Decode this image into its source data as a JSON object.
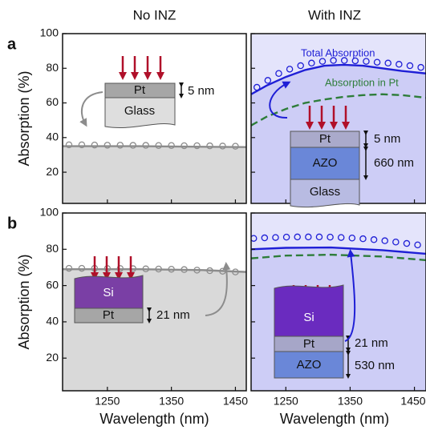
{
  "chart_data": [
    {
      "type": "line",
      "title": "No INZ",
      "panel_label": "a",
      "ylabel": "Absorption (%)",
      "xlim": [
        1180,
        1467
      ],
      "ylim": [
        2,
        100
      ],
      "xticks": [
        1250,
        1350,
        1450
      ],
      "yticks": [
        20,
        40,
        60,
        80,
        100
      ],
      "background": "#ffffff",
      "area_color": "#d9d9d9",
      "series": [
        {
          "style": "solid",
          "color": "#8c8c8c",
          "x": [
            1180,
            1300,
            1467
          ],
          "values": [
            35,
            35,
            34.5
          ]
        },
        {
          "style": "markers",
          "color": "#8c8c8c",
          "x": [
            1190,
            1210,
            1230,
            1250,
            1270,
            1290,
            1310,
            1330,
            1350,
            1370,
            1390,
            1410,
            1430,
            1450
          ],
          "values": [
            35.8,
            35.8,
            35.7,
            35.6,
            35.6,
            35.5,
            35.5,
            35.4,
            35.4,
            35.3,
            35.3,
            35.2,
            35.1,
            35
          ]
        }
      ],
      "annotations": [
        "Pt",
        "Glass",
        "5 nm"
      ]
    },
    {
      "type": "line",
      "title": "With INZ",
      "xlim": [
        1196,
        1468
      ],
      "ylim": [
        2,
        100
      ],
      "xticks": [
        1250,
        1350,
        1450
      ],
      "yticks": [
        20,
        40,
        60,
        80,
        100
      ],
      "background": "#e4e4fb",
      "area_color": "#cdcdf6",
      "series": [
        {
          "style": "solid",
          "color": "#1f1fd6",
          "x": [
            1196,
            1220,
            1250,
            1280,
            1310,
            1340,
            1370,
            1400,
            1430,
            1468
          ],
          "values": [
            65,
            70,
            75,
            79,
            81.5,
            82,
            81.5,
            80,
            78.5,
            77
          ]
        },
        {
          "style": "markers",
          "color": "#1f1fd6",
          "x": [
            1205,
            1222,
            1239,
            1256,
            1273,
            1290,
            1307,
            1324,
            1341,
            1358,
            1375,
            1392,
            1409,
            1426,
            1443,
            1460
          ],
          "values": [
            69,
            73,
            77,
            79.5,
            81.5,
            83,
            84,
            84.5,
            84.5,
            84.3,
            84,
            83.5,
            83,
            82.3,
            81.5,
            80.5
          ]
        },
        {
          "style": "dashed",
          "color": "#2e7d3a",
          "x": [
            1196,
            1220,
            1250,
            1280,
            1310,
            1340,
            1370,
            1400,
            1430,
            1468
          ],
          "values": [
            47,
            52,
            56.5,
            60,
            62,
            63.5,
            64.5,
            65,
            64.5,
            63
          ]
        }
      ],
      "annotations": [
        "Total Absorption",
        "Absorption in Pt",
        "Pt",
        "AZO",
        "Glass",
        "5 nm",
        "660 nm"
      ]
    },
    {
      "type": "line",
      "panel_label": "b",
      "ylabel": "Absorption (%)",
      "xlabel": "Wavelength (nm)",
      "xlim": [
        1180,
        1467
      ],
      "ylim": [
        2,
        100
      ],
      "xticks": [
        1250,
        1350,
        1450
      ],
      "yticks": [
        20,
        40,
        60,
        80,
        100
      ],
      "background": "#ffffff",
      "area_color": "#d9d9d9",
      "series": [
        {
          "style": "solid",
          "color": "#8c8c8c",
          "x": [
            1180,
            1300,
            1400,
            1467
          ],
          "values": [
            69,
            69,
            68.5,
            67.5
          ]
        },
        {
          "style": "markers",
          "color": "#8c8c8c",
          "x": [
            1190,
            1210,
            1230,
            1250,
            1270,
            1290,
            1310,
            1330,
            1350,
            1370,
            1390,
            1410,
            1430,
            1450
          ],
          "values": [
            69.5,
            69.5,
            69.5,
            69.4,
            69.4,
            69.3,
            69.2,
            69.1,
            69,
            68.8,
            68.5,
            68.2,
            67.9,
            67.5
          ]
        }
      ],
      "annotations": [
        "Si",
        "Pt",
        "21 nm"
      ]
    },
    {
      "type": "line",
      "xlabel": "Wavelength (nm)",
      "xlim": [
        1196,
        1468
      ],
      "ylim": [
        2,
        100
      ],
      "xticks": [
        1250,
        1350,
        1450
      ],
      "yticks": [
        20,
        40,
        60,
        80,
        100
      ],
      "background": "#e4e4fb",
      "area_color": "#cdcdf6",
      "series": [
        {
          "style": "solid",
          "color": "#1f1fd6",
          "x": [
            1196,
            1250,
            1320,
            1400,
            1468
          ],
          "values": [
            80,
            80.8,
            81,
            79.5,
            77.5
          ]
        },
        {
          "style": "markers",
          "color": "#1f1fd6",
          "x": [
            1200,
            1217,
            1234,
            1251,
            1268,
            1285,
            1302,
            1319,
            1336,
            1353,
            1370,
            1387,
            1404,
            1421,
            1438,
            1455
          ],
          "values": [
            86,
            86.3,
            86.5,
            86.7,
            86.8,
            86.8,
            86.8,
            86.7,
            86.5,
            86.2,
            85.8,
            85.3,
            84.7,
            84,
            83.2,
            82.4
          ]
        },
        {
          "style": "dashed",
          "color": "#2e7d3a",
          "x": [
            1196,
            1250,
            1320,
            1400,
            1468
          ],
          "values": [
            75,
            76.5,
            77,
            76,
            74
          ]
        }
      ],
      "annotations": [
        "Si",
        "Pt",
        "AZO",
        "21 nm",
        "530 nm"
      ]
    }
  ]
}
